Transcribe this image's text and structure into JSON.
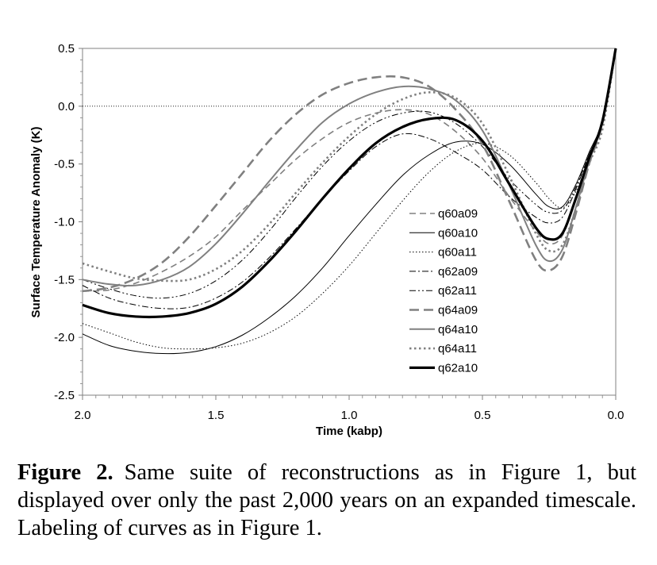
{
  "caption": {
    "label": "Figure 2.",
    "text": "Same suite of reconstructions as in Figure 1, but displayed over only the past 2,000 years on an expanded timescale. Labeling of curves as in Figure 1."
  },
  "chart_data": {
    "type": "line",
    "title": "",
    "xlabel": "Time (kabp)",
    "ylabel": "Surface Temperature Anomaly (K)",
    "xlim": [
      2.0,
      0.0
    ],
    "ylim": [
      -2.5,
      0.5
    ],
    "x_reversed": true,
    "xticks": [
      "2.0",
      "1.5",
      "1.0",
      "0.5",
      "0.0"
    ],
    "xtick_values": [
      2.0,
      1.5,
      1.0,
      0.5,
      0.0
    ],
    "yticks": [
      "0.5",
      "0.0",
      "-0.5",
      "-1.0",
      "-1.5",
      "-2.0",
      "-2.5"
    ],
    "ytick_values": [
      0.5,
      0.0,
      -0.5,
      -1.0,
      -1.5,
      -2.0,
      -2.5
    ],
    "zero_line": true,
    "legend_position": "right",
    "series": [
      {
        "name": "q60a09",
        "color": "#808080",
        "style": "dashed",
        "points": [
          [
            2.0,
            -1.6
          ],
          [
            1.9,
            -1.59
          ],
          [
            1.8,
            -1.53
          ],
          [
            1.7,
            -1.43
          ],
          [
            1.6,
            -1.3
          ],
          [
            1.5,
            -1.13
          ],
          [
            1.4,
            -0.9
          ],
          [
            1.3,
            -0.68
          ],
          [
            1.2,
            -0.46
          ],
          [
            1.1,
            -0.28
          ],
          [
            1.0,
            -0.14
          ],
          [
            0.9,
            -0.06
          ],
          [
            0.8,
            -0.03
          ],
          [
            0.7,
            -0.07
          ],
          [
            0.6,
            -0.22
          ],
          [
            0.5,
            -0.45
          ],
          [
            0.4,
            -0.78
          ],
          [
            0.3,
            -1.08
          ],
          [
            0.25,
            -1.19
          ],
          [
            0.2,
            -1.12
          ],
          [
            0.15,
            -0.8
          ],
          [
            0.1,
            -0.45
          ],
          [
            0.05,
            -0.14
          ],
          [
            0.0,
            0.5
          ]
        ]
      },
      {
        "name": "q60a10",
        "color": "#000000",
        "style": "solid-thin",
        "points": [
          [
            2.0,
            -1.97
          ],
          [
            1.9,
            -2.07
          ],
          [
            1.8,
            -2.12
          ],
          [
            1.7,
            -2.14
          ],
          [
            1.6,
            -2.13
          ],
          [
            1.5,
            -2.08
          ],
          [
            1.4,
            -1.98
          ],
          [
            1.3,
            -1.83
          ],
          [
            1.2,
            -1.64
          ],
          [
            1.1,
            -1.4
          ],
          [
            1.0,
            -1.12
          ],
          [
            0.9,
            -0.85
          ],
          [
            0.8,
            -0.6
          ],
          [
            0.7,
            -0.42
          ],
          [
            0.6,
            -0.31
          ],
          [
            0.5,
            -0.33
          ],
          [
            0.4,
            -0.5
          ],
          [
            0.3,
            -0.76
          ],
          [
            0.25,
            -0.87
          ],
          [
            0.2,
            -0.87
          ],
          [
            0.15,
            -0.68
          ],
          [
            0.1,
            -0.4
          ],
          [
            0.05,
            -0.12
          ],
          [
            0.0,
            0.5
          ]
        ]
      },
      {
        "name": "q60a11",
        "color": "#000000",
        "style": "dotted",
        "points": [
          [
            2.0,
            -1.88
          ],
          [
            1.9,
            -1.96
          ],
          [
            1.8,
            -2.04
          ],
          [
            1.7,
            -2.09
          ],
          [
            1.6,
            -2.1
          ],
          [
            1.5,
            -2.09
          ],
          [
            1.4,
            -2.05
          ],
          [
            1.3,
            -1.96
          ],
          [
            1.2,
            -1.82
          ],
          [
            1.1,
            -1.62
          ],
          [
            1.0,
            -1.38
          ],
          [
            0.9,
            -1.1
          ],
          [
            0.8,
            -0.82
          ],
          [
            0.7,
            -0.57
          ],
          [
            0.6,
            -0.39
          ],
          [
            0.5,
            -0.32
          ],
          [
            0.4,
            -0.42
          ],
          [
            0.3,
            -0.66
          ],
          [
            0.25,
            -0.8
          ],
          [
            0.2,
            -0.88
          ],
          [
            0.15,
            -0.74
          ],
          [
            0.1,
            -0.45
          ],
          [
            0.05,
            -0.13
          ],
          [
            0.0,
            0.5
          ]
        ]
      },
      {
        "name": "q62a09",
        "color": "#000000",
        "style": "dashdot",
        "points": [
          [
            2.0,
            -1.55
          ],
          [
            1.9,
            -1.66
          ],
          [
            1.8,
            -1.72
          ],
          [
            1.7,
            -1.75
          ],
          [
            1.6,
            -1.74
          ],
          [
            1.5,
            -1.66
          ],
          [
            1.4,
            -1.52
          ],
          [
            1.3,
            -1.31
          ],
          [
            1.2,
            -1.06
          ],
          [
            1.1,
            -0.8
          ],
          [
            1.0,
            -0.56
          ],
          [
            0.9,
            -0.35
          ],
          [
            0.8,
            -0.24
          ],
          [
            0.7,
            -0.28
          ],
          [
            0.6,
            -0.4
          ],
          [
            0.5,
            -0.55
          ],
          [
            0.4,
            -0.78
          ],
          [
            0.3,
            -0.96
          ],
          [
            0.25,
            -1.01
          ],
          [
            0.2,
            -0.96
          ],
          [
            0.15,
            -0.72
          ],
          [
            0.1,
            -0.42
          ],
          [
            0.05,
            -0.13
          ],
          [
            0.0,
            0.5
          ]
        ]
      },
      {
        "name": "q62a11",
        "color": "#000000",
        "style": "dashdotdot",
        "points": [
          [
            2.0,
            -1.5
          ],
          [
            1.9,
            -1.58
          ],
          [
            1.8,
            -1.64
          ],
          [
            1.7,
            -1.66
          ],
          [
            1.6,
            -1.62
          ],
          [
            1.5,
            -1.51
          ],
          [
            1.4,
            -1.33
          ],
          [
            1.3,
            -1.08
          ],
          [
            1.2,
            -0.79
          ],
          [
            1.1,
            -0.52
          ],
          [
            1.0,
            -0.3
          ],
          [
            0.9,
            -0.14
          ],
          [
            0.8,
            -0.06
          ],
          [
            0.7,
            -0.05
          ],
          [
            0.6,
            -0.15
          ],
          [
            0.5,
            -0.35
          ],
          [
            0.4,
            -0.63
          ],
          [
            0.3,
            -0.85
          ],
          [
            0.25,
            -0.92
          ],
          [
            0.2,
            -0.9
          ],
          [
            0.15,
            -0.7
          ],
          [
            0.1,
            -0.42
          ],
          [
            0.05,
            -0.13
          ],
          [
            0.0,
            0.5
          ]
        ]
      },
      {
        "name": "q64a09",
        "color": "#808080",
        "style": "dashed-thick",
        "points": [
          [
            2.0,
            -1.6
          ],
          [
            1.9,
            -1.57
          ],
          [
            1.8,
            -1.49
          ],
          [
            1.7,
            -1.35
          ],
          [
            1.6,
            -1.13
          ],
          [
            1.5,
            -0.86
          ],
          [
            1.4,
            -0.58
          ],
          [
            1.3,
            -0.3
          ],
          [
            1.2,
            -0.07
          ],
          [
            1.1,
            0.1
          ],
          [
            1.0,
            0.2
          ],
          [
            0.9,
            0.25
          ],
          [
            0.8,
            0.25
          ],
          [
            0.7,
            0.17
          ],
          [
            0.6,
            -0.03
          ],
          [
            0.5,
            -0.33
          ],
          [
            0.4,
            -0.82
          ],
          [
            0.3,
            -1.33
          ],
          [
            0.25,
            -1.42
          ],
          [
            0.2,
            -1.3
          ],
          [
            0.15,
            -0.93
          ],
          [
            0.1,
            -0.5
          ],
          [
            0.05,
            -0.15
          ],
          [
            0.0,
            0.5
          ]
        ]
      },
      {
        "name": "q64a10",
        "color": "#808080",
        "style": "solid",
        "points": [
          [
            2.0,
            -1.5
          ],
          [
            1.9,
            -1.54
          ],
          [
            1.8,
            -1.55
          ],
          [
            1.7,
            -1.5
          ],
          [
            1.6,
            -1.39
          ],
          [
            1.5,
            -1.19
          ],
          [
            1.4,
            -0.93
          ],
          [
            1.3,
            -0.65
          ],
          [
            1.2,
            -0.38
          ],
          [
            1.1,
            -0.14
          ],
          [
            1.0,
            0.02
          ],
          [
            0.9,
            0.12
          ],
          [
            0.8,
            0.17
          ],
          [
            0.7,
            0.15
          ],
          [
            0.6,
            0.05
          ],
          [
            0.5,
            -0.21
          ],
          [
            0.4,
            -0.68
          ],
          [
            0.3,
            -1.2
          ],
          [
            0.25,
            -1.34
          ],
          [
            0.2,
            -1.24
          ],
          [
            0.15,
            -0.88
          ],
          [
            0.1,
            -0.48
          ],
          [
            0.05,
            -0.14
          ],
          [
            0.0,
            0.5
          ]
        ]
      },
      {
        "name": "q64a11",
        "color": "#808080",
        "style": "dotted-thick",
        "points": [
          [
            2.0,
            -1.36
          ],
          [
            1.9,
            -1.43
          ],
          [
            1.8,
            -1.49
          ],
          [
            1.7,
            -1.51
          ],
          [
            1.6,
            -1.5
          ],
          [
            1.5,
            -1.41
          ],
          [
            1.4,
            -1.25
          ],
          [
            1.3,
            -1.02
          ],
          [
            1.2,
            -0.75
          ],
          [
            1.1,
            -0.49
          ],
          [
            1.0,
            -0.26
          ],
          [
            0.9,
            -0.07
          ],
          [
            0.8,
            0.06
          ],
          [
            0.7,
            0.12
          ],
          [
            0.6,
            0.07
          ],
          [
            0.5,
            -0.15
          ],
          [
            0.4,
            -0.6
          ],
          [
            0.3,
            -1.1
          ],
          [
            0.25,
            -1.25
          ],
          [
            0.2,
            -1.2
          ],
          [
            0.15,
            -0.89
          ],
          [
            0.1,
            -0.5
          ],
          [
            0.05,
            -0.2
          ],
          [
            0.0,
            0.5
          ]
        ]
      },
      {
        "name": "q62a10",
        "color": "#000000",
        "style": "solid-thick",
        "points": [
          [
            2.0,
            -1.72
          ],
          [
            1.9,
            -1.79
          ],
          [
            1.8,
            -1.82
          ],
          [
            1.7,
            -1.82
          ],
          [
            1.6,
            -1.79
          ],
          [
            1.5,
            -1.71
          ],
          [
            1.4,
            -1.56
          ],
          [
            1.3,
            -1.34
          ],
          [
            1.2,
            -1.08
          ],
          [
            1.1,
            -0.8
          ],
          [
            1.0,
            -0.54
          ],
          [
            0.9,
            -0.32
          ],
          [
            0.8,
            -0.18
          ],
          [
            0.7,
            -0.11
          ],
          [
            0.6,
            -0.12
          ],
          [
            0.5,
            -0.3
          ],
          [
            0.4,
            -0.67
          ],
          [
            0.3,
            -1.05
          ],
          [
            0.25,
            -1.15
          ],
          [
            0.2,
            -1.1
          ],
          [
            0.15,
            -0.8
          ],
          [
            0.1,
            -0.45
          ],
          [
            0.05,
            -0.13
          ],
          [
            0.0,
            0.5
          ]
        ]
      }
    ]
  }
}
